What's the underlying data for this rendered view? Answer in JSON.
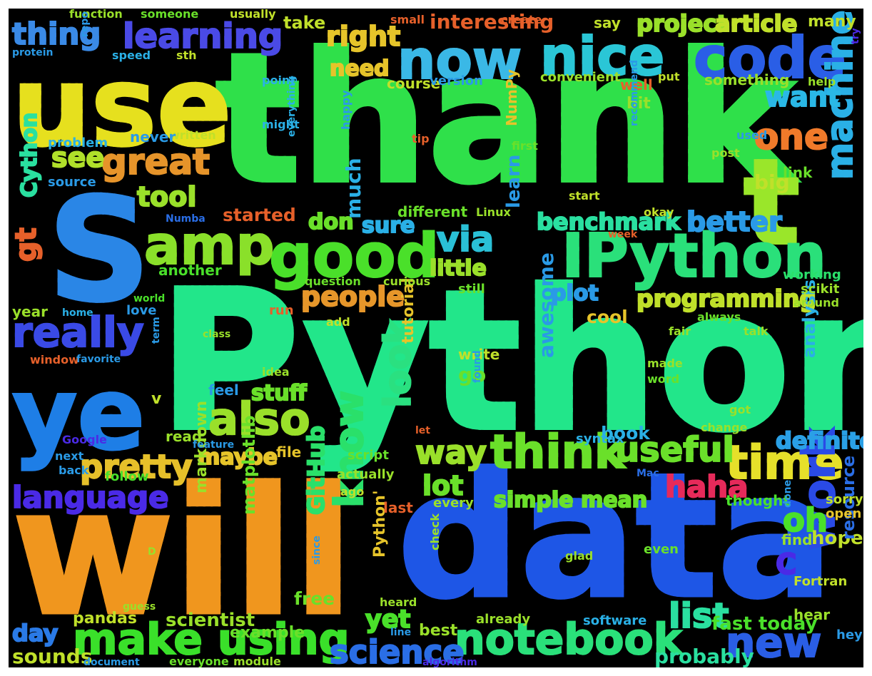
{
  "words": [
    {
      "text": "thank",
      "color": "#2fe04a"
    },
    {
      "text": "Python",
      "color": "#22e68a"
    },
    {
      "text": "will",
      "color": "#f0961e"
    },
    {
      "text": "data",
      "color": "#1e56e6"
    },
    {
      "text": "S",
      "color": "#2a86e6"
    },
    {
      "text": "use",
      "color": "#e6e01e"
    },
    {
      "text": "ye",
      "color": "#1e7ee6"
    },
    {
      "text": "t",
      "color": "#9ae62a"
    },
    {
      "text": "now",
      "color": "#3ab8e6"
    },
    {
      "text": "nice",
      "color": "#2ac6d6"
    },
    {
      "text": "code",
      "color": "#2a5ee6"
    },
    {
      "text": "IPython",
      "color": "#2ae07a"
    },
    {
      "text": "good",
      "color": "#4ae02a"
    },
    {
      "text": "amp",
      "color": "#8ae02a"
    },
    {
      "text": "one",
      "color": "#f07a2a"
    },
    {
      "text": "learning",
      "color": "#4a4ae6"
    },
    {
      "text": "thing",
      "color": "#3a8ae6"
    },
    {
      "text": "great",
      "color": "#e6942a"
    },
    {
      "text": "really",
      "color": "#3a4ae6"
    },
    {
      "text": "also",
      "color": "#9ae02a"
    },
    {
      "text": "time",
      "color": "#e6e02a"
    },
    {
      "text": "think",
      "color": "#6ae02a"
    },
    {
      "text": "notebook",
      "color": "#2ae07a"
    },
    {
      "text": "make using",
      "color": "#3ae02a"
    },
    {
      "text": "language",
      "color": "#4a2ae6"
    },
    {
      "text": "machine",
      "color": "#2ab0e6"
    },
    {
      "text": "work",
      "color": "#2a4ae6"
    },
    {
      "text": "new",
      "color": "#2a5ee6"
    },
    {
      "text": "list",
      "color": "#2ae0a0"
    },
    {
      "text": "science",
      "color": "#2a6ee6"
    },
    {
      "text": "know",
      "color": "#2ae06a"
    },
    {
      "text": "look",
      "color": "#2ae080"
    },
    {
      "text": "useful",
      "color": "#6ae02a"
    },
    {
      "text": "pretty",
      "color": "#e6c02a"
    },
    {
      "text": "people",
      "color": "#e6962a"
    },
    {
      "text": "tool",
      "color": "#9ae02a"
    },
    {
      "text": "see",
      "color": "#b0e02a"
    },
    {
      "text": "want",
      "color": "#2ab8e6"
    },
    {
      "text": "right",
      "color": "#e6c42a"
    },
    {
      "text": "need",
      "color": "#e6c42a"
    },
    {
      "text": "via",
      "color": "#2ac0d6"
    },
    {
      "text": "better",
      "color": "#2a9ae6"
    },
    {
      "text": "benchmark",
      "color": "#2ae0a0"
    },
    {
      "text": "programming",
      "color": "#c0e02a"
    },
    {
      "text": "haha",
      "color": "#e62a5a"
    },
    {
      "text": "oh",
      "color": "#4ae02a"
    },
    {
      "text": "way",
      "color": "#9ae02a"
    },
    {
      "text": "lot",
      "color": "#6ae02a"
    },
    {
      "text": "maybe",
      "color": "#e6c42a"
    },
    {
      "text": "stuff",
      "color": "#6ae02a"
    },
    {
      "text": "project",
      "color": "#9ae02a"
    },
    {
      "text": "article",
      "color": "#c0e02a"
    },
    {
      "text": "interesting",
      "color": "#e6602a"
    },
    {
      "text": "definitely",
      "color": "#2aa0e6"
    },
    {
      "text": "started",
      "color": "#e6602a"
    },
    {
      "text": "sure",
      "color": "#2ab0e6"
    },
    {
      "text": "don",
      "color": "#6ae02a"
    },
    {
      "text": "little",
      "color": "#9ae02a"
    },
    {
      "text": "plot",
      "color": "#2a9ae6"
    },
    {
      "text": "gt",
      "color": "#e6602a"
    },
    {
      "text": "Cython",
      "color": "#2ae0a0"
    },
    {
      "text": "GitHub",
      "color": "#2ae06a"
    },
    {
      "text": "awesome",
      "color": "#2a9ae6"
    },
    {
      "text": "yet",
      "color": "#4ae02a"
    },
    {
      "text": "day",
      "color": "#2a7ae6"
    },
    {
      "text": "sounds",
      "color": "#c0e02a"
    },
    {
      "text": "hope",
      "color": "#c0e02a"
    },
    {
      "text": "simple mean",
      "color": "#6ae02a"
    },
    {
      "text": "probably",
      "color": "#2ae0a0"
    },
    {
      "text": "fast today",
      "color": "#4ae02a"
    },
    {
      "text": "scientist",
      "color": "#9ae02a"
    },
    {
      "text": "pandas",
      "color": "#c0e02a"
    },
    {
      "text": "free",
      "color": "#6ae02a"
    },
    {
      "text": "example",
      "color": "#6ae02a"
    },
    {
      "text": "much",
      "color": "#2ab0e6"
    },
    {
      "text": "learn",
      "color": "#2a9ae6"
    },
    {
      "text": "book",
      "color": "#2ab0e6"
    },
    {
      "text": "cool",
      "color": "#e6c42a"
    },
    {
      "text": "big",
      "color": "#c0e02a"
    },
    {
      "text": "tutorial",
      "color": "#e6c42a"
    },
    {
      "text": "analysis",
      "color": "#2ab0e6"
    },
    {
      "text": "resource",
      "color": "#2a6ee6"
    },
    {
      "text": "matplotlib",
      "color": "#6ae02a"
    },
    {
      "text": "markdown",
      "color": "#9ae02a"
    },
    {
      "text": "Python'",
      "color": "#e6c42a"
    },
    {
      "text": "C",
      "color": "#4a2ae6"
    },
    {
      "text": "function",
      "color": "#9ae02a"
    },
    {
      "text": "someone",
      "color": "#6ae02a"
    },
    {
      "text": "usually",
      "color": "#c0e02a"
    },
    {
      "text": "small",
      "color": "#e6602a"
    },
    {
      "text": "create",
      "color": "#e6602a"
    },
    {
      "text": "say",
      "color": "#c0e02a"
    },
    {
      "text": "many",
      "color": "#c0e02a"
    },
    {
      "text": "take",
      "color": "#c0e02a"
    },
    {
      "text": "repo",
      "color": "#2a9ae6"
    },
    {
      "text": "protein",
      "color": "#2a9ae6"
    },
    {
      "text": "speed",
      "color": "#2ab0e6"
    },
    {
      "text": "sth",
      "color": "#c0e02a"
    },
    {
      "text": "try",
      "color": "#4a2ae6"
    },
    {
      "text": "point",
      "color": "#2ab0e6"
    },
    {
      "text": "course",
      "color": "#c0e02a"
    },
    {
      "text": "version",
      "color": "#2a9ae6"
    },
    {
      "text": "convenient",
      "color": "#9ae02a"
    },
    {
      "text": "well",
      "color": "#e6602a"
    },
    {
      "text": "put",
      "color": "#c0e02a"
    },
    {
      "text": "something",
      "color": "#9ae02a"
    },
    {
      "text": "help",
      "color": "#9ae02a"
    },
    {
      "text": "bit",
      "color": "#9ae02a"
    },
    {
      "text": "might",
      "color": "#2ab0e6"
    },
    {
      "text": "written",
      "color": "#c0e02a"
    },
    {
      "text": "problem",
      "color": "#2ab0e6"
    },
    {
      "text": "never",
      "color": "#2a9ae6"
    },
    {
      "text": "source",
      "color": "#2a9ae6"
    },
    {
      "text": "happy",
      "color": "#2a9ae6"
    },
    {
      "text": "NumPy",
      "color": "#e6c42a"
    },
    {
      "text": "tip",
      "color": "#e6602a"
    },
    {
      "text": "first",
      "color": "#6ae02a"
    },
    {
      "text": "recommend",
      "color": "#2a9ae6"
    },
    {
      "text": "used",
      "color": "#2a9ae6"
    },
    {
      "text": "post",
      "color": "#9ae02a"
    },
    {
      "text": "link",
      "color": "#6ae02a"
    },
    {
      "text": "everything",
      "color": "#2ab0e6"
    },
    {
      "text": "Numba",
      "color": "#2a6ee6"
    },
    {
      "text": "different",
      "color": "#6ae02a"
    },
    {
      "text": "Linux",
      "color": "#9ae02a"
    },
    {
      "text": "okay",
      "color": "#c0e02a"
    },
    {
      "text": "start",
      "color": "#c0e02a"
    },
    {
      "text": "week",
      "color": "#e6602a"
    },
    {
      "text": "another",
      "color": "#4ae02a"
    },
    {
      "text": "question",
      "color": "#6ae02a"
    },
    {
      "text": "curious",
      "color": "#9ae02a"
    },
    {
      "text": "still",
      "color": "#6ae02a"
    },
    {
      "text": "working",
      "color": "#2ae06a"
    },
    {
      "text": "scikit",
      "color": "#9ae02a"
    },
    {
      "text": "around",
      "color": "#9ae02a"
    },
    {
      "text": "world",
      "color": "#4ae02a"
    },
    {
      "text": "home",
      "color": "#2ab0e6"
    },
    {
      "text": "love",
      "color": "#2a9ae6"
    },
    {
      "text": "year",
      "color": "#9ae02a"
    },
    {
      "text": "run",
      "color": "#e6602a"
    },
    {
      "text": "add",
      "color": "#c0e02a"
    },
    {
      "text": "always",
      "color": "#6ae02a"
    },
    {
      "text": "fair",
      "color": "#9ae02a"
    },
    {
      "text": "talk",
      "color": "#9ae02a"
    },
    {
      "text": "class",
      "color": "#9ae02a"
    },
    {
      "text": "window",
      "color": "#e6602a"
    },
    {
      "text": "favorite",
      "color": "#2a9ae6"
    },
    {
      "text": "term",
      "color": "#2a9ae6"
    },
    {
      "text": "idea",
      "color": "#9ae02a"
    },
    {
      "text": "write",
      "color": "#c0e02a"
    },
    {
      "text": "made",
      "color": "#9ae02a"
    },
    {
      "text": "word",
      "color": "#6ae02a"
    },
    {
      "text": "go",
      "color": "#6ae02a"
    },
    {
      "text": "v",
      "color": "#c0e02a"
    },
    {
      "text": "feel",
      "color": "#2a9ae6"
    },
    {
      "text": "found",
      "color": "#2a9ae6"
    },
    {
      "text": "got",
      "color": "#9ae02a"
    },
    {
      "text": "change",
      "color": "#9ae02a"
    },
    {
      "text": "Google",
      "color": "#4a2ae6"
    },
    {
      "text": "read",
      "color": "#9ae02a"
    },
    {
      "text": "feature",
      "color": "#2a9ae6"
    },
    {
      "text": "file",
      "color": "#e6c42a"
    },
    {
      "text": "let",
      "color": "#e6602a"
    },
    {
      "text": "syntax",
      "color": "#2ab0e6"
    },
    {
      "text": "next",
      "color": "#2a9ae6"
    },
    {
      "text": "script",
      "color": "#6ae02a"
    },
    {
      "text": "back",
      "color": "#2a9ae6"
    },
    {
      "text": "follow",
      "color": "#4ae02a"
    },
    {
      "text": "actually",
      "color": "#9ae02a"
    },
    {
      "text": "Mac",
      "color": "#2a6ee6"
    },
    {
      "text": "thought",
      "color": "#4ae02a"
    },
    {
      "text": "sorry",
      "color": "#c0e02a"
    },
    {
      "text": "open",
      "color": "#e6c42a"
    },
    {
      "text": "ago",
      "color": "#c0e02a"
    },
    {
      "text": "every",
      "color": "#9ae02a"
    },
    {
      "text": "last",
      "color": "#e6602a"
    },
    {
      "text": "done",
      "color": "#2a9ae6"
    },
    {
      "text": "find",
      "color": "#9ae02a"
    },
    {
      "text": "glad",
      "color": "#9ae02a"
    },
    {
      "text": "even",
      "color": "#6ae02a"
    },
    {
      "text": "since",
      "color": "#2a9ae6"
    },
    {
      "text": "check",
      "color": "#9ae02a"
    },
    {
      "text": "D",
      "color": "#9ae02a"
    },
    {
      "text": "Fortran",
      "color": "#c0e02a"
    },
    {
      "text": "hear",
      "color": "#9ae02a"
    },
    {
      "text": "heard",
      "color": "#9ae02a"
    },
    {
      "text": "guess",
      "color": "#9ae02a"
    },
    {
      "text": "already",
      "color": "#9ae02a"
    },
    {
      "text": "software",
      "color": "#2ab0e6"
    },
    {
      "text": "hey",
      "color": "#2a9ae6"
    },
    {
      "text": "best",
      "color": "#9ae02a"
    },
    {
      "text": "line",
      "color": "#2a9ae6"
    },
    {
      "text": "document",
      "color": "#2a9ae6"
    },
    {
      "text": "everyone",
      "color": "#6ae02a"
    },
    {
      "text": "module",
      "color": "#9ae02a"
    },
    {
      "text": "algorithm",
      "color": "#4a2ae6"
    }
  ]
}
